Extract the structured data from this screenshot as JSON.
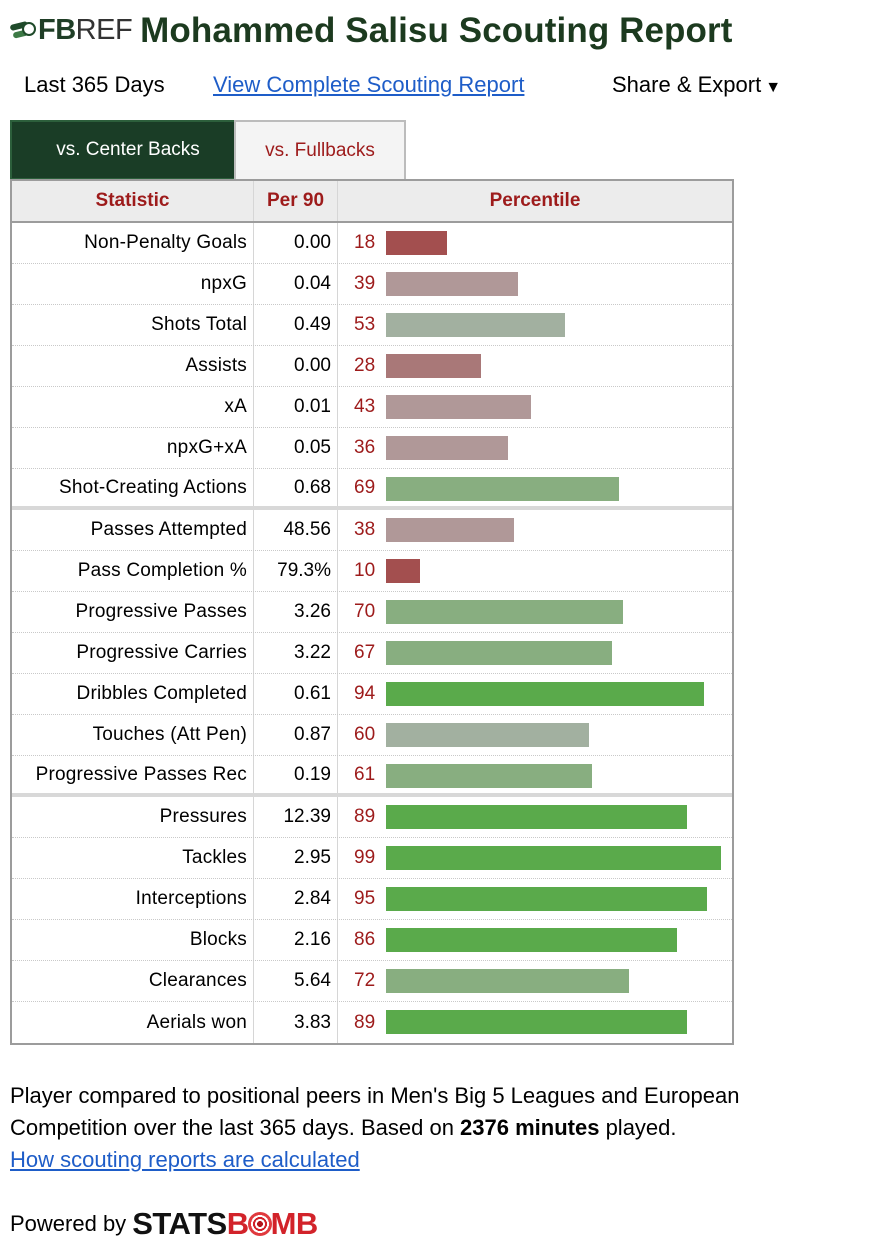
{
  "logo": {
    "fb": "FB",
    "ref": "REF"
  },
  "title": "Mohammed Salisu Scouting Report",
  "subbar": {
    "period": "Last 365 Days",
    "link": "View Complete Scouting Report",
    "share": "Share & Export",
    "share_caret": "▼"
  },
  "tabs": [
    {
      "label": "vs. Center Backs",
      "active": true
    },
    {
      "label": "vs. Fullbacks",
      "active": false
    }
  ],
  "table": {
    "headers": {
      "stat": "Statistic",
      "per90": "Per 90",
      "pct": "Percentile"
    },
    "groups": [
      [
        {
          "stat": "Non-Penalty Goals",
          "per90": "0.00",
          "pct": 18
        },
        {
          "stat": "npxG",
          "per90": "0.04",
          "pct": 39
        },
        {
          "stat": "Shots Total",
          "per90": "0.49",
          "pct": 53
        },
        {
          "stat": "Assists",
          "per90": "0.00",
          "pct": 28
        },
        {
          "stat": "xA",
          "per90": "0.01",
          "pct": 43
        },
        {
          "stat": "npxG+xA",
          "per90": "0.05",
          "pct": 36
        },
        {
          "stat": "Shot-Creating Actions",
          "per90": "0.68",
          "pct": 69
        }
      ],
      [
        {
          "stat": "Passes Attempted",
          "per90": "48.56",
          "pct": 38
        },
        {
          "stat": "Pass Completion %",
          "per90": "79.3%",
          "pct": 10
        },
        {
          "stat": "Progressive Passes",
          "per90": "3.26",
          "pct": 70
        },
        {
          "stat": "Progressive Carries",
          "per90": "3.22",
          "pct": 67
        },
        {
          "stat": "Dribbles Completed",
          "per90": "0.61",
          "pct": 94
        },
        {
          "stat": "Touches (Att Pen)",
          "per90": "0.87",
          "pct": 60
        },
        {
          "stat": "Progressive Passes Rec",
          "per90": "0.19",
          "pct": 61
        }
      ],
      [
        {
          "stat": "Pressures",
          "per90": "12.39",
          "pct": 89
        },
        {
          "stat": "Tackles",
          "per90": "2.95",
          "pct": 99
        },
        {
          "stat": "Interceptions",
          "per90": "2.84",
          "pct": 95
        },
        {
          "stat": "Blocks",
          "per90": "2.16",
          "pct": 86
        },
        {
          "stat": "Clearances",
          "per90": "5.64",
          "pct": 72
        },
        {
          "stat": "Aerials won",
          "per90": "3.83",
          "pct": 89
        }
      ]
    ]
  },
  "footer": {
    "text_before": "Player compared to positional peers in Men's Big 5 Leagues and European Competition over the last 365 days. Based on ",
    "minutes": "2376 minutes",
    "text_after": " played.",
    "link": "How scouting reports are calculated"
  },
  "powered": {
    "label": "Powered by",
    "brand_a": "STATS",
    "brand_b": "B",
    "brand_c": "MB"
  },
  "colors": {
    "title": "#1c3a1f",
    "tab_active_bg": "#1a3d26",
    "accent_red": "#9d1b1b",
    "link": "#1e5dc8"
  }
}
